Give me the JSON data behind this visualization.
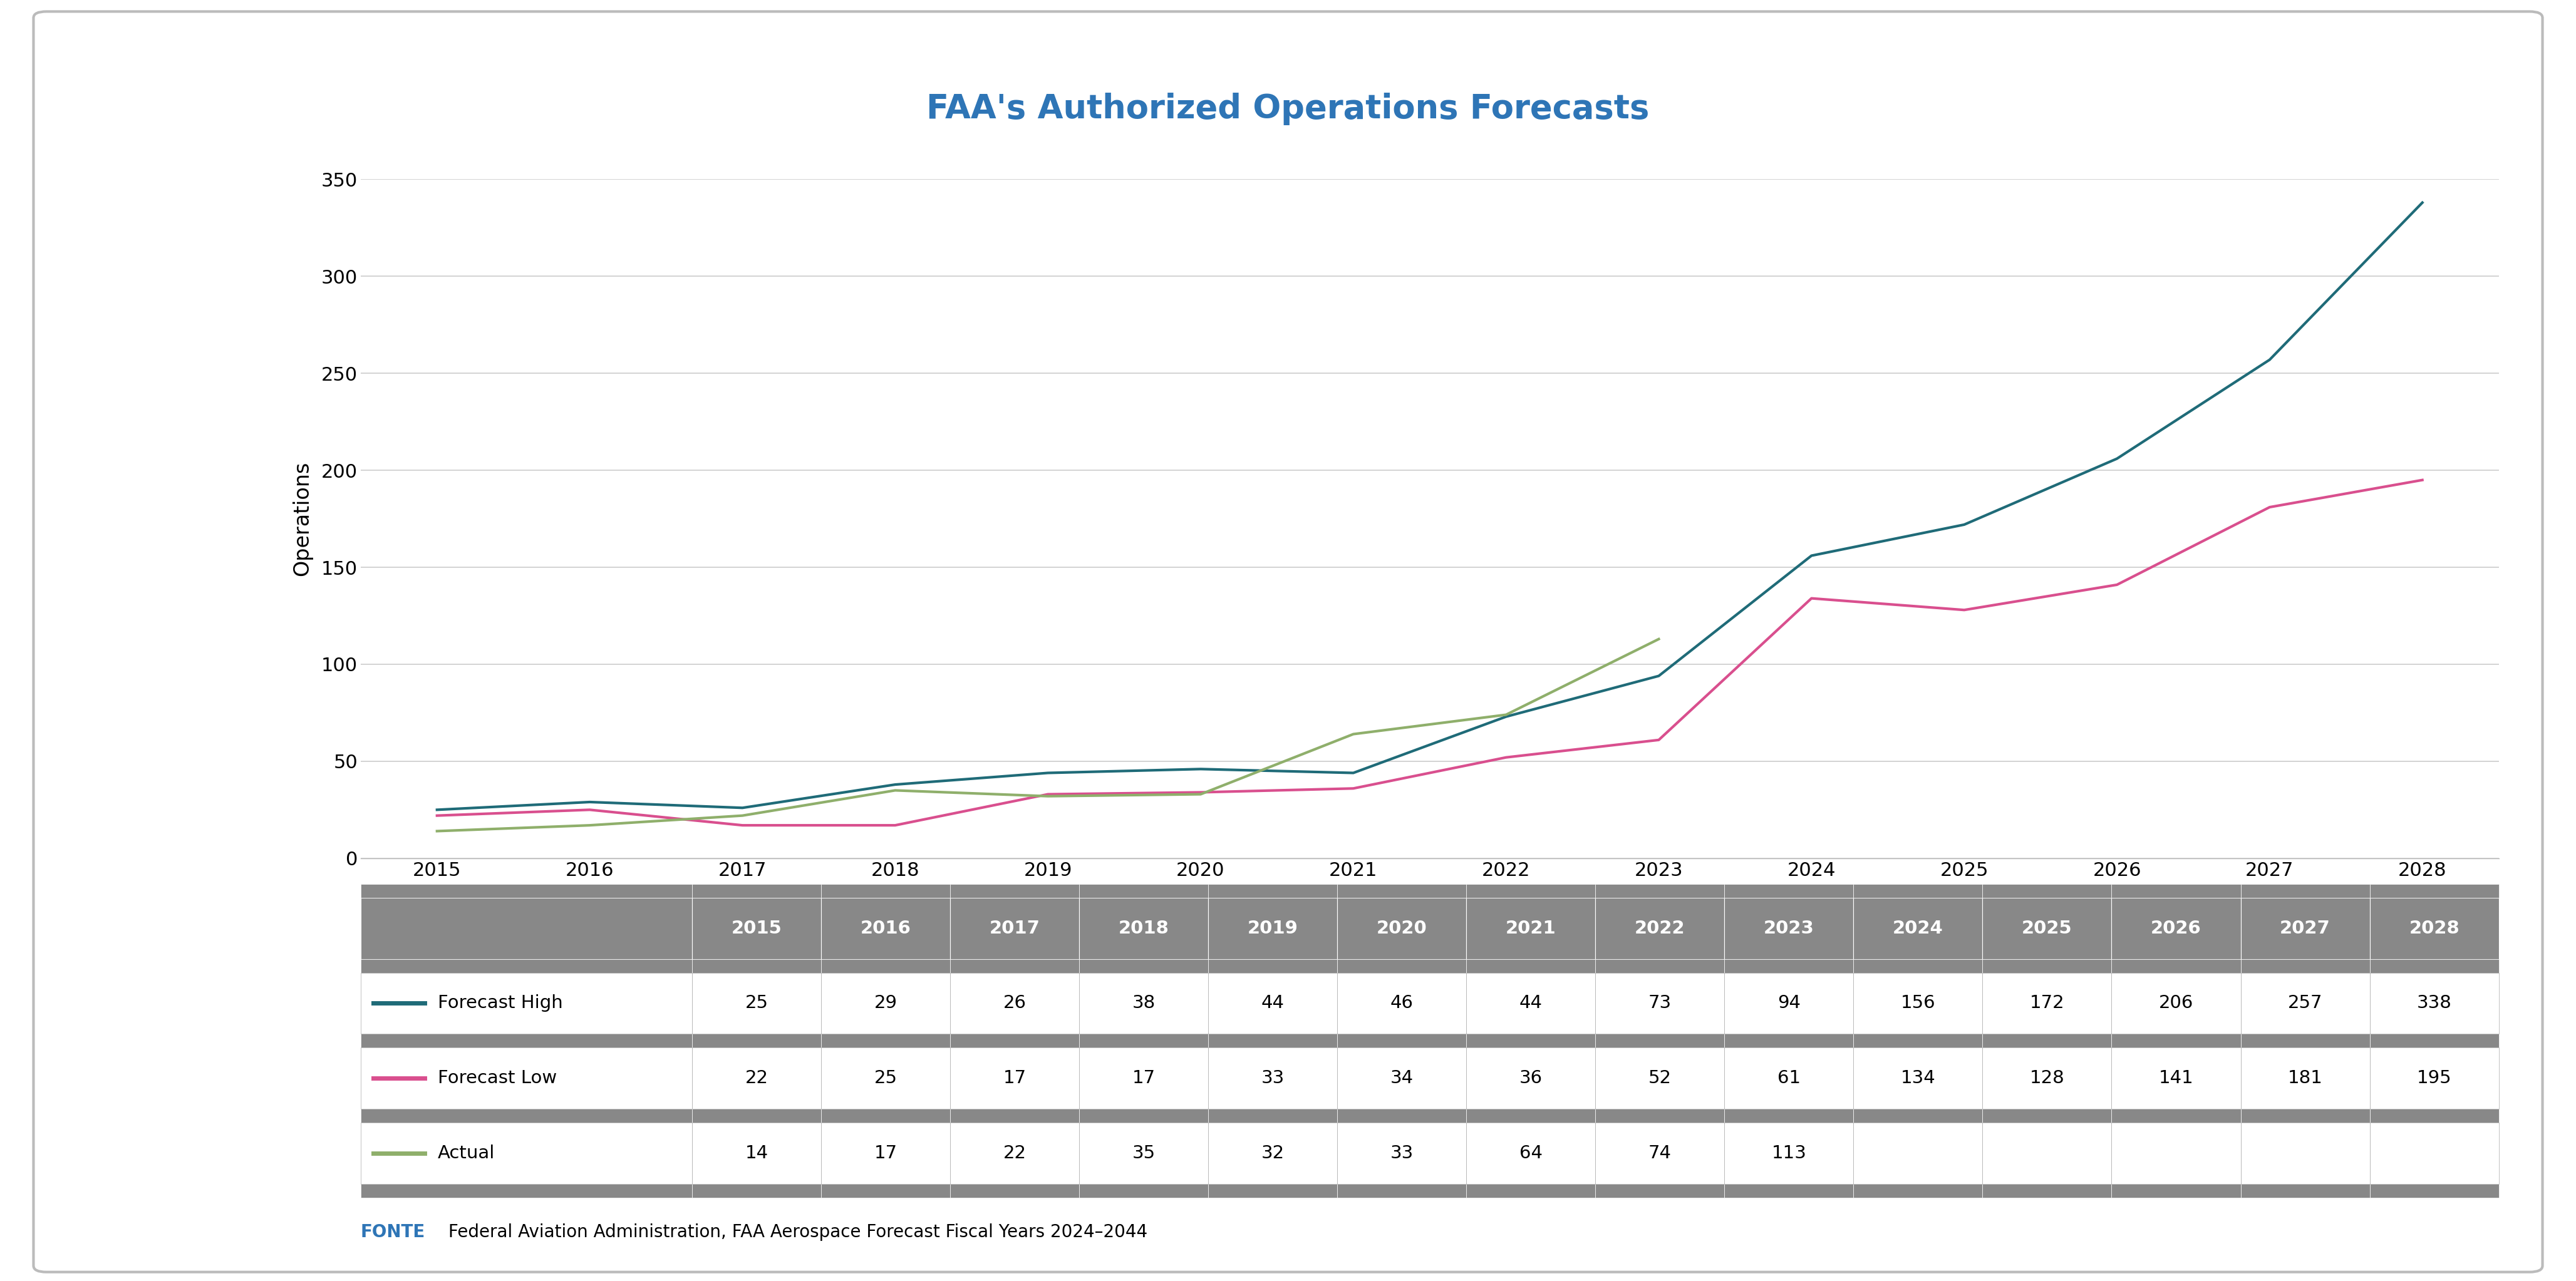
{
  "title": "FAA's Authorized Operations Forecasts",
  "title_color": "#2E75B6",
  "ylabel": "Operations",
  "years": [
    2015,
    2016,
    2017,
    2018,
    2019,
    2020,
    2021,
    2022,
    2023,
    2024,
    2025,
    2026,
    2027,
    2028
  ],
  "forecast_high": [
    25,
    29,
    26,
    38,
    44,
    46,
    44,
    73,
    94,
    156,
    172,
    206,
    257,
    338
  ],
  "forecast_low": [
    22,
    25,
    17,
    17,
    33,
    34,
    36,
    52,
    61,
    134,
    128,
    141,
    181,
    195
  ],
  "actual": [
    14,
    17,
    22,
    35,
    32,
    33,
    64,
    74,
    113,
    null,
    null,
    null,
    null,
    null
  ],
  "forecast_high_color": "#1F6B78",
  "forecast_low_color": "#D94F8E",
  "actual_color": "#8FAF6B",
  "ylim": [
    0,
    350
  ],
  "yticks": [
    0,
    50,
    100,
    150,
    200,
    250,
    300,
    350
  ],
  "grid_color": "#CCCCCC",
  "bg_white": "#FFFFFF",
  "outer_bg": "#FFFFFF",
  "inner_border_color": "#BBBBBB",
  "fonte_color": "#2E75B6",
  "fonte_text": "FONTE",
  "fonte_rest": " Federal Aviation Administration, FAA Aerospace Forecast Fiscal Years 2024–2044",
  "table_header_bg": "#888888",
  "table_sep_bg": "#888888",
  "table_border_color": "#AAAAAA",
  "line_width": 3.0,
  "row_labels": [
    "Forecast High",
    "Forecast Low",
    "Actual"
  ],
  "title_fontsize": 38,
  "tick_fontsize": 22,
  "ylabel_fontsize": 24,
  "table_fontsize": 21,
  "fonte_fontsize": 20
}
